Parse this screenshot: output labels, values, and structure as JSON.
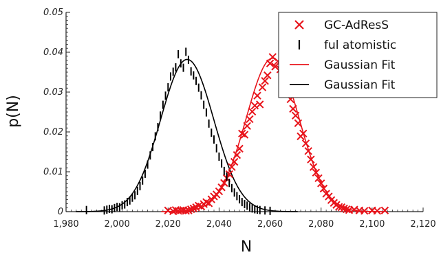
{
  "chart_data": {
    "type": "scatter",
    "xlabel": "N",
    "ylabel": "p(N)",
    "xlim": [
      1980,
      2120
    ],
    "ylim": [
      0,
      0.05
    ],
    "x_ticks": [
      "1,980",
      "2,000",
      "2,020",
      "2,040",
      "2,060",
      "2,080",
      "2,100",
      "2,120"
    ],
    "y_ticks": [
      "0",
      "0.01",
      "0.02",
      "0.03",
      "0.04",
      "0.05"
    ],
    "legend_position": "top-right",
    "colors": {
      "gcadress": "#e8141b",
      "atomistic": "#000000"
    },
    "series": [
      {
        "name": "GC-AdResS",
        "marker": "x",
        "color": "#e8141b",
        "points": [
          [
            2020,
            0.0003
          ],
          [
            2022,
            0.0001
          ],
          [
            2023,
            0.0004
          ],
          [
            2024,
            0.0002
          ],
          [
            2025,
            0.0003
          ],
          [
            2026,
            0.0004
          ],
          [
            2027,
            0.0002
          ],
          [
            2028,
            0.0003
          ],
          [
            2029,
            0.0006
          ],
          [
            2030,
            0.0008
          ],
          [
            2031,
            0.0011
          ],
          [
            2032,
            0.0015
          ],
          [
            2033,
            0.0013
          ],
          [
            2034,
            0.0019
          ],
          [
            2035,
            0.0024
          ],
          [
            2036,
            0.0021
          ],
          [
            2037,
            0.0031
          ],
          [
            2038,
            0.0038
          ],
          [
            2039,
            0.0043
          ],
          [
            2040,
            0.0051
          ],
          [
            2041,
            0.0061
          ],
          [
            2042,
            0.0072
          ],
          [
            2043,
            0.0084
          ],
          [
            2044,
            0.0094
          ],
          [
            2045,
            0.0112
          ],
          [
            2046,
            0.0125
          ],
          [
            2047,
            0.0142
          ],
          [
            2048,
            0.0158
          ],
          [
            2049,
            0.0196
          ],
          [
            2050,
            0.0193
          ],
          [
            2051,
            0.0215
          ],
          [
            2052,
            0.0232
          ],
          [
            2053,
            0.0251
          ],
          [
            2054,
            0.0266
          ],
          [
            2055,
            0.0291
          ],
          [
            2056,
            0.0269
          ],
          [
            2057,
            0.0312
          ],
          [
            2058,
            0.0328
          ],
          [
            2059,
            0.0342
          ],
          [
            2060,
            0.0372
          ],
          [
            2061,
            0.0388
          ],
          [
            2062,
            0.0364
          ],
          [
            2063,
            0.0377
          ],
          [
            2064,
            0.0357
          ],
          [
            2065,
            0.0332
          ],
          [
            2066,
            0.0322
          ],
          [
            2067,
            0.0301
          ],
          [
            2068,
            0.0282
          ],
          [
            2069,
            0.0258
          ],
          [
            2070,
            0.0241
          ],
          [
            2071,
            0.0222
          ],
          [
            2072,
            0.0189
          ],
          [
            2073,
            0.0196
          ],
          [
            2074,
            0.0171
          ],
          [
            2075,
            0.0152
          ],
          [
            2076,
            0.0131
          ],
          [
            2077,
            0.0112
          ],
          [
            2078,
            0.0098
          ],
          [
            2079,
            0.0084
          ],
          [
            2080,
            0.0071
          ],
          [
            2081,
            0.0058
          ],
          [
            2082,
            0.0045
          ],
          [
            2083,
            0.0038
          ],
          [
            2084,
            0.0029
          ],
          [
            2085,
            0.0022
          ],
          [
            2086,
            0.0017
          ],
          [
            2087,
            0.0012
          ],
          [
            2088,
            0.0011
          ],
          [
            2089,
            0.0008
          ],
          [
            2090,
            0.0006
          ],
          [
            2091,
            0.0004
          ],
          [
            2093,
            0.0005
          ],
          [
            2095,
            0.0003
          ],
          [
            2097,
            0.0002
          ],
          [
            2100,
            0.0003
          ],
          [
            2102,
            0.0002
          ],
          [
            2105,
            0.0003
          ]
        ]
      },
      {
        "name": "ful atomistic",
        "marker": "vbar",
        "color": "#000000",
        "points": [
          [
            1988,
            0.0004
          ],
          [
            1995,
            0.0003
          ],
          [
            1996,
            0.0005
          ],
          [
            1997,
            0.0007
          ],
          [
            1998,
            0.0006
          ],
          [
            1999,
            0.0009
          ],
          [
            2000,
            0.0012
          ],
          [
            2001,
            0.0011
          ],
          [
            2002,
            0.0016
          ],
          [
            2003,
            0.0018
          ],
          [
            2004,
            0.0024
          ],
          [
            2005,
            0.0028
          ],
          [
            2006,
            0.0035
          ],
          [
            2007,
            0.0041
          ],
          [
            2008,
            0.0052
          ],
          [
            2009,
            0.0064
          ],
          [
            2010,
            0.0078
          ],
          [
            2011,
            0.0095
          ],
          [
            2012,
            0.0118
          ],
          [
            2013,
            0.0141
          ],
          [
            2014,
            0.0162
          ],
          [
            2015,
            0.0189
          ],
          [
            2016,
            0.0212
          ],
          [
            2017,
            0.0241
          ],
          [
            2018,
            0.0268
          ],
          [
            2019,
            0.0291
          ],
          [
            2020,
            0.0312
          ],
          [
            2021,
            0.0339
          ],
          [
            2022,
            0.0351
          ],
          [
            2023,
            0.0362
          ],
          [
            2024,
            0.0395
          ],
          [
            2025,
            0.0372
          ],
          [
            2026,
            0.0361
          ],
          [
            2027,
            0.0401
          ],
          [
            2028,
            0.0381
          ],
          [
            2029,
            0.0352
          ],
          [
            2030,
            0.0342
          ],
          [
            2031,
            0.0328
          ],
          [
            2032,
            0.0311
          ],
          [
            2033,
            0.0292
          ],
          [
            2034,
            0.0268
          ],
          [
            2035,
            0.0249
          ],
          [
            2036,
            0.0221
          ],
          [
            2037,
            0.0198
          ],
          [
            2038,
            0.0181
          ],
          [
            2039,
            0.0159
          ],
          [
            2040,
            0.0138
          ],
          [
            2041,
            0.0121
          ],
          [
            2042,
            0.0102
          ],
          [
            2043,
            0.0088
          ],
          [
            2044,
            0.0072
          ],
          [
            2045,
            0.0059
          ],
          [
            2046,
            0.0048
          ],
          [
            2047,
            0.0039
          ],
          [
            2048,
            0.0031
          ],
          [
            2049,
            0.0024
          ],
          [
            2050,
            0.0019
          ],
          [
            2051,
            0.0015
          ],
          [
            2052,
            0.0011
          ],
          [
            2053,
            0.0008
          ],
          [
            2054,
            0.0006
          ],
          [
            2055,
            0.0005
          ],
          [
            2056,
            0.0004
          ],
          [
            2058,
            0.0003
          ],
          [
            2060,
            0.0002
          ]
        ]
      },
      {
        "name": "Gaussian Fit",
        "type": "line",
        "color": "#e8141b",
        "curve": {
          "mu": 2061,
          "sigma": 10.4,
          "amp": 0.0385
        }
      },
      {
        "name": "Gaussian Fit",
        "type": "line",
        "color": "#000000",
        "curve": {
          "mu": 2027.5,
          "sigma": 10.4,
          "amp": 0.0382
        }
      }
    ]
  }
}
